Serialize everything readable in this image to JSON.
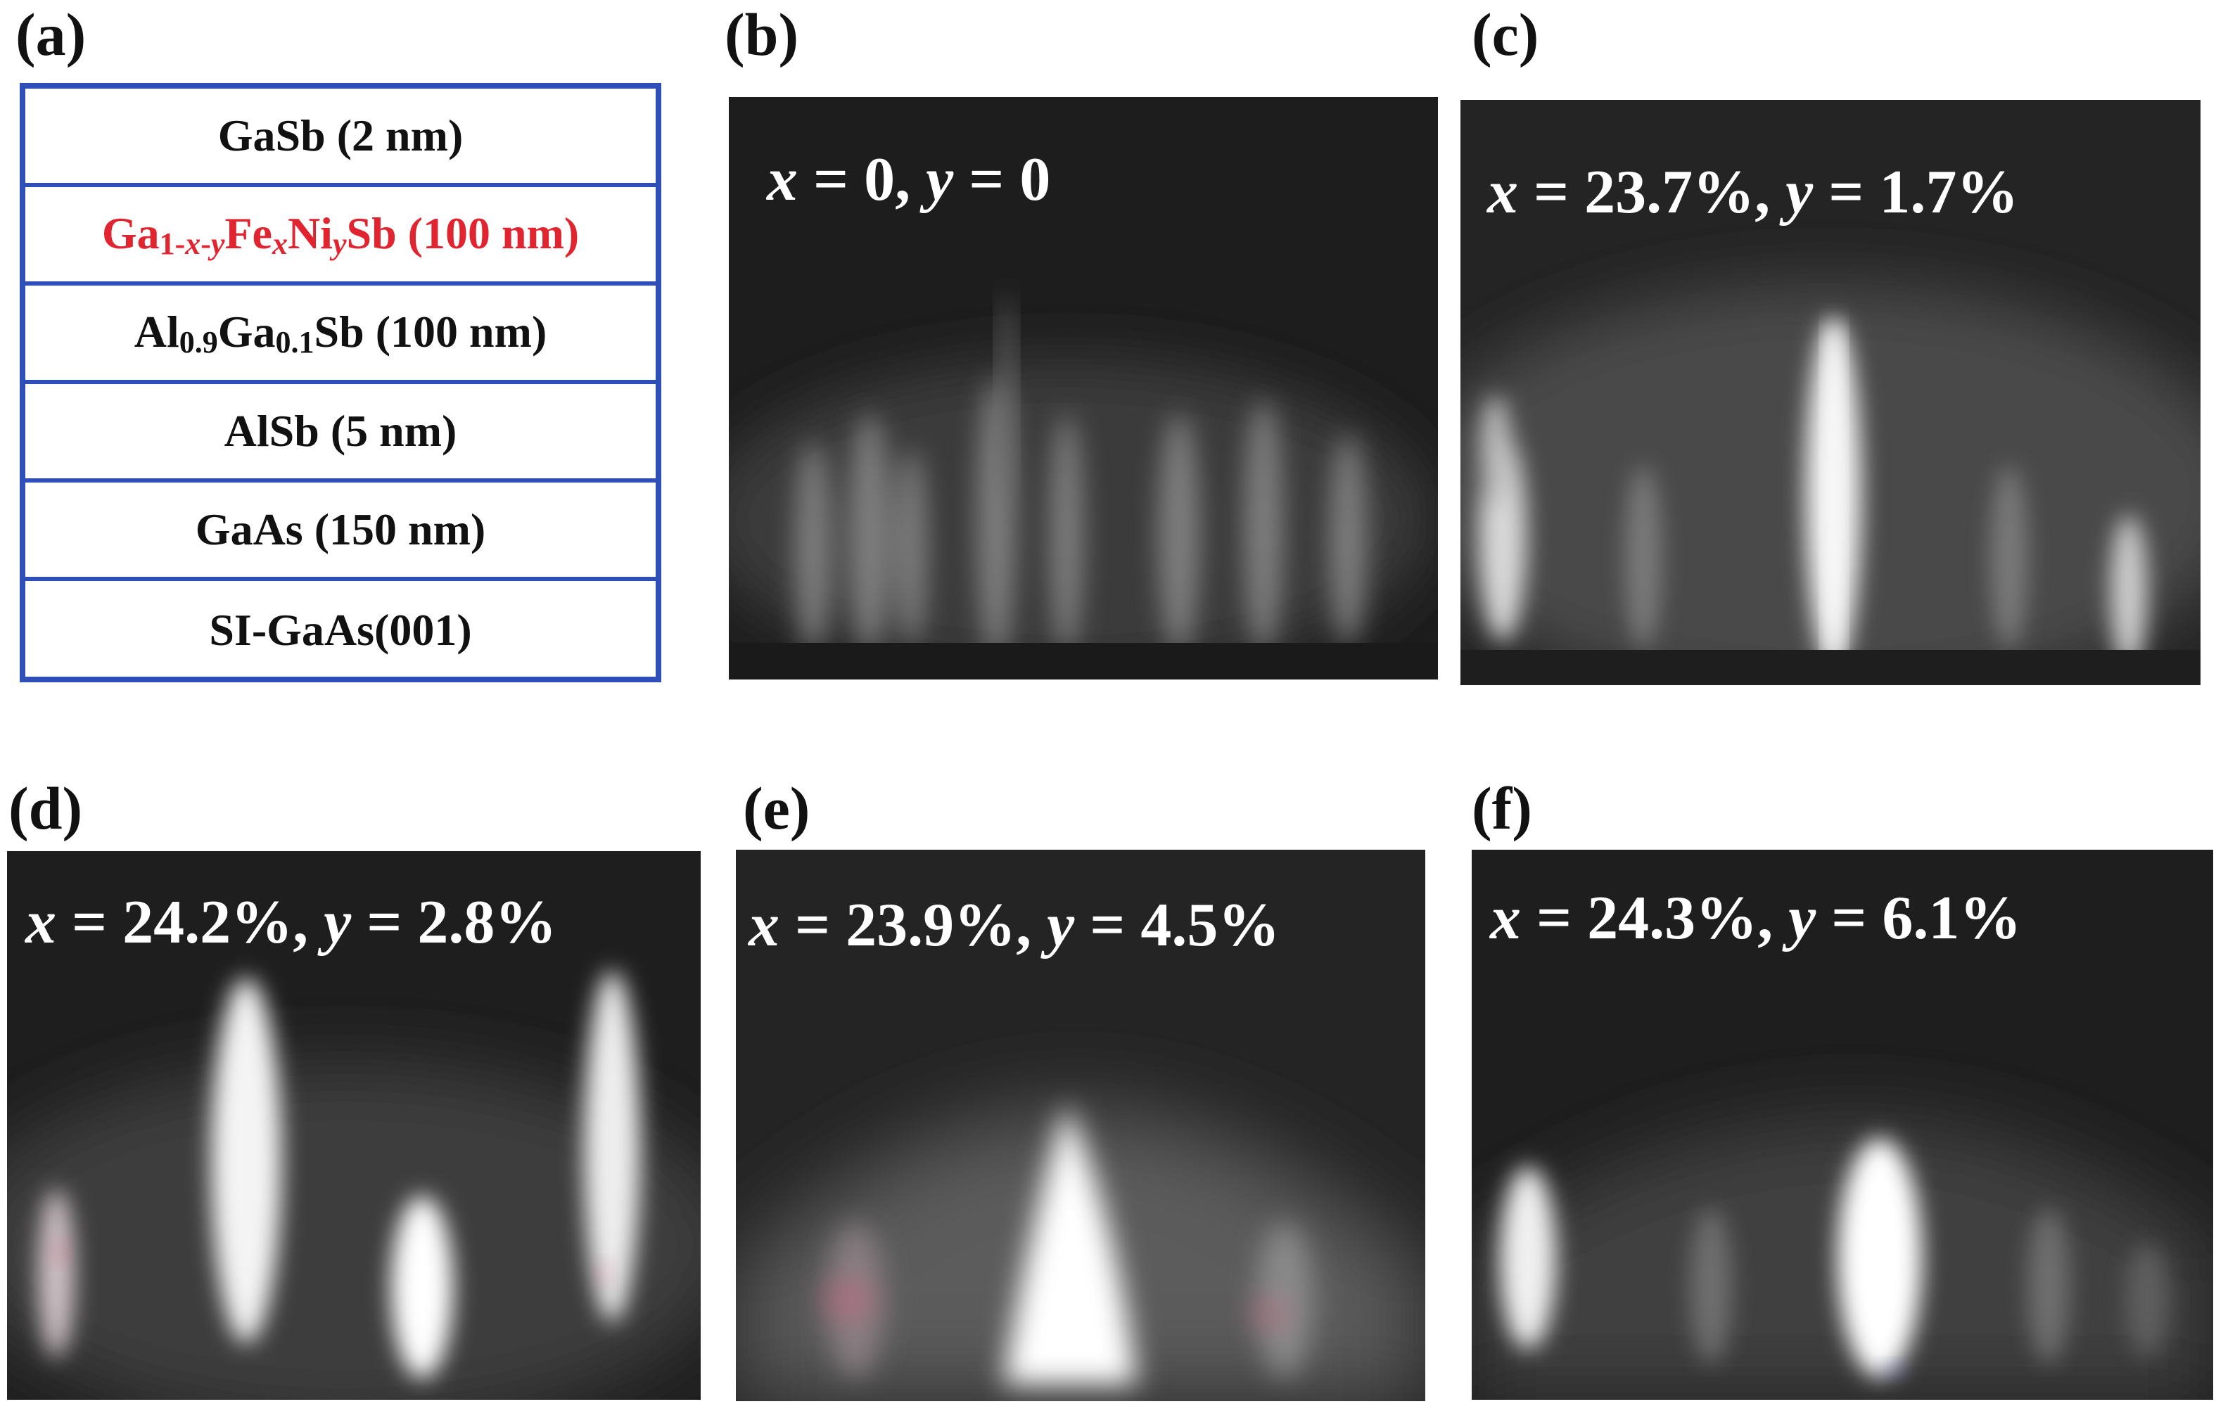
{
  "panels": {
    "a": {
      "label": "(a)",
      "layers": [
        {
          "text": "GaSb (2 nm)"
        },
        {
          "parts": [
            "Ga",
            "1-",
            "x",
            "-",
            "y",
            "Fe",
            "x",
            "Ni",
            "y",
            "Sb (100 nm)"
          ]
        },
        {
          "parts": [
            "Al",
            "0.9",
            "Ga",
            "0.1",
            "Sb (100 nm)"
          ]
        },
        {
          "text": "AlSb (5 nm)"
        },
        {
          "text": "GaAs (150 nm)"
        },
        {
          "text": "SI-GaAs(001)"
        }
      ],
      "colors": {
        "border": "#2f4fb8",
        "highlight_layer_text": "#e02430"
      }
    },
    "b": {
      "label": "(b)",
      "x_sym": "x",
      "x_val": " = 0, ",
      "y_sym": "y",
      "y_val": " = 0"
    },
    "c": {
      "label": "(c)",
      "x_sym": "x",
      "x_val": " = 23.7%, ",
      "y_sym": "y",
      "y_val": " = 1.7%"
    },
    "d": {
      "label": "(d)",
      "x_sym": "x",
      "x_val": " = 24.2%, ",
      "y_sym": "y",
      "y_val": " = 2.8%"
    },
    "e": {
      "label": "(e)",
      "x_sym": "x",
      "x_val": " = 23.9%, ",
      "y_sym": "y",
      "y_val": " = 4.5%"
    },
    "f": {
      "label": "(f)",
      "x_sym": "x",
      "x_val": " = 24.3%, ",
      "y_sym": "y",
      "y_val": " = 6.1%"
    }
  }
}
